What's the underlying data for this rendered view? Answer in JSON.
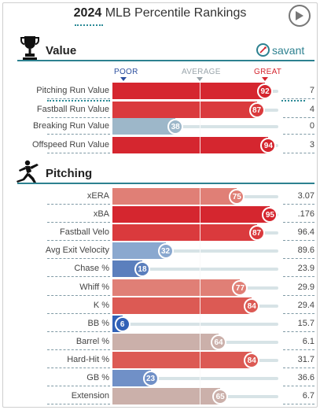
{
  "header": {
    "year": "2024",
    "title": "MLB Percentile Rankings"
  },
  "value_section": {
    "title": "Value",
    "brand": "savant",
    "scale": {
      "poor": "POOR",
      "average": "AVERAGE",
      "great": "GREAT"
    },
    "rows": [
      {
        "label": "Pitching Run Value",
        "percentile": 92,
        "value": "7",
        "color": "#d5262f"
      },
      {
        "label": "Fastball Run Value",
        "percentile": 87,
        "value": "4",
        "color": "#da3a3d"
      },
      {
        "label": "Breaking Run Value",
        "percentile": 38,
        "value": "0",
        "color": "#9db7c9"
      },
      {
        "label": "Offspeed Run Value",
        "percentile": 94,
        "value": "3",
        "color": "#d5262f"
      }
    ]
  },
  "pitching_section": {
    "title": "Pitching",
    "rows": [
      {
        "label": "xERA",
        "percentile": 75,
        "value": "3.07",
        "color": "#e07f76"
      },
      {
        "label": "xBA",
        "percentile": 95,
        "value": ".176",
        "color": "#d5262f"
      },
      {
        "label": "Fastball Velo",
        "percentile": 87,
        "value": "96.4",
        "color": "#da3a3d"
      },
      {
        "label": "Avg Exit Velocity",
        "percentile": 32,
        "value": "89.6",
        "color": "#8aa8cf"
      },
      {
        "label": "Chase %",
        "percentile": 18,
        "value": "23.9",
        "color": "#5b7fbd"
      },
      {
        "label": "Whiff %",
        "percentile": 77,
        "value": "29.9",
        "color": "#e07f76"
      },
      {
        "label": "K %",
        "percentile": 84,
        "value": "29.4",
        "color": "#dc5a54"
      },
      {
        "label": "BB %",
        "percentile": 6,
        "value": "15.7",
        "color": "#3161b7"
      },
      {
        "label": "Barrel %",
        "percentile": 64,
        "value": "6.1",
        "color": "#cbb0aa"
      },
      {
        "label": "Hard-Hit %",
        "percentile": 84,
        "value": "31.7",
        "color": "#dc5a54"
      },
      {
        "label": "GB %",
        "percentile": 23,
        "value": "36.6",
        "color": "#7090c7"
      },
      {
        "label": "Extension",
        "percentile": 65,
        "value": "6.7",
        "color": "#cbb0aa"
      }
    ]
  },
  "icons": {
    "play": "play-icon",
    "trophy": "trophy-icon",
    "pitcher": "pitcher-icon",
    "savant_logo": "savant-logo-icon"
  }
}
